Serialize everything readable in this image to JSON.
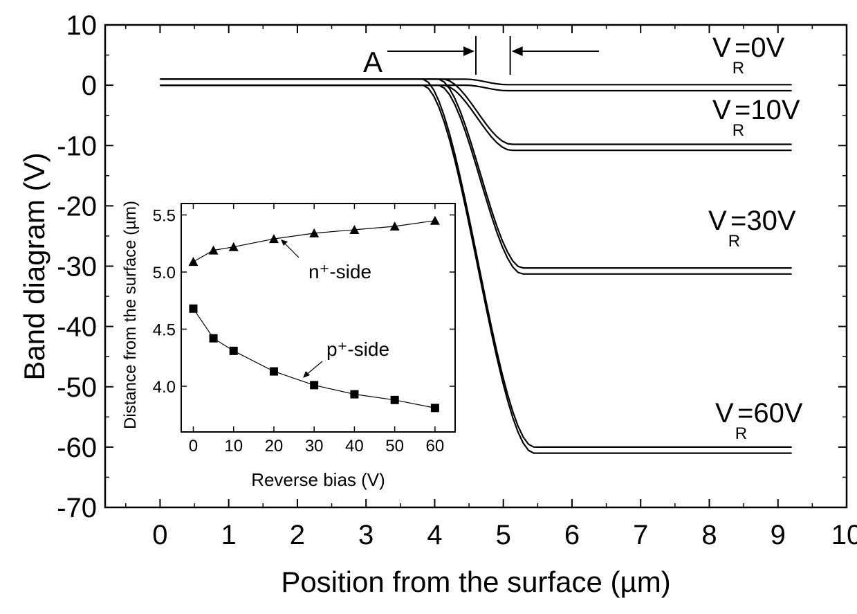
{
  "chart_data": [
    {
      "type": "line",
      "xlabel": "Position from the surface (µm)",
      "ylabel": "Band diagram (V)",
      "xlim": [
        -0.8,
        10
      ],
      "ylim": [
        -70,
        10
      ],
      "x_ticks": [
        0,
        1,
        2,
        3,
        4,
        5,
        6,
        7,
        8,
        9,
        10
      ],
      "y_ticks": [
        10,
        0,
        -10,
        -20,
        -30,
        -40,
        -50,
        -60,
        -70
      ],
      "x_tick_labels": [
        "0",
        "1",
        "2",
        "3",
        "4",
        "5",
        "6",
        "7",
        "8",
        "9",
        "10"
      ],
      "y_tick_labels": [
        "10",
        "0",
        "-10",
        "-20",
        "-30",
        "-40",
        "-50",
        "-60",
        "-70"
      ],
      "grid": false,
      "series": [
        {
          "name": "V_R=0V",
          "curves": [
            {
              "start": 1.0,
              "end": 0.1,
              "x0": 4.45,
              "x1": 5.05
            },
            {
              "start": 0.0,
              "end": -0.9,
              "x0": 4.45,
              "x1": 5.05
            }
          ]
        },
        {
          "name": "V_R=10V",
          "curves": [
            {
              "start": 1.0,
              "end": -9.8,
              "x0": 4.12,
              "x1": 5.12
            },
            {
              "start": 0.0,
              "end": -10.8,
              "x0": 4.12,
              "x1": 5.12
            }
          ]
        },
        {
          "name": "V_R=30V",
          "curves": [
            {
              "start": 1.0,
              "end": -30.3,
              "x0": 4.05,
              "x1": 5.28
            },
            {
              "start": 0.0,
              "end": -31.3,
              "x0": 4.05,
              "x1": 5.28
            }
          ]
        },
        {
          "name": "V_R=60V",
          "curves": [
            {
              "start": 1.0,
              "end": -60.0,
              "x0": 3.82,
              "x1": 5.45
            },
            {
              "start": 0.0,
              "end": -61.0,
              "x0": 3.82,
              "x1": 5.45
            }
          ]
        }
      ],
      "x_end": 9.2,
      "annotations": {
        "marker_label": "A",
        "marker_range": [
          4.6,
          5.1
        ],
        "labels": [
          {
            "main": "V",
            "sub": "R",
            "rest": "=0V"
          },
          {
            "main": "V",
            "sub": "R",
            "rest": "=10V"
          },
          {
            "main": "V",
            "sub": "R",
            "rest": "=30V"
          },
          {
            "main": "V",
            "sub": "R",
            "rest": "=60V"
          }
        ]
      }
    },
    {
      "type": "scatter",
      "xlabel": "Reverse bias (V)",
      "ylabel": "Distance from the surface (µm)",
      "xlim": [
        -3,
        65
      ],
      "ylim": [
        3.6,
        5.6
      ],
      "x_ticks": [
        0,
        10,
        20,
        30,
        40,
        50,
        60
      ],
      "y_ticks": [
        4.0,
        4.5,
        5.0,
        5.5
      ],
      "x_tick_labels": [
        "0",
        "10",
        "20",
        "30",
        "40",
        "50",
        "60"
      ],
      "y_tick_labels": [
        "4.0",
        "4.5",
        "5.0",
        "5.5"
      ],
      "series": [
        {
          "name": "n⁺-side",
          "marker": "triangle",
          "x": [
            0,
            5,
            10,
            20,
            30,
            40,
            50,
            60
          ],
          "y": [
            5.09,
            5.19,
            5.22,
            5.29,
            5.34,
            5.37,
            5.4,
            5.45
          ]
        },
        {
          "name": "p⁺-side",
          "marker": "square",
          "x": [
            0,
            5,
            10,
            20,
            30,
            40,
            50,
            60
          ],
          "y": [
            4.68,
            4.42,
            4.31,
            4.13,
            4.01,
            3.93,
            3.88,
            3.81
          ]
        }
      ],
      "annotation_labels": {
        "n_side": "n⁺-side",
        "p_side": "p⁺-side"
      }
    }
  ]
}
